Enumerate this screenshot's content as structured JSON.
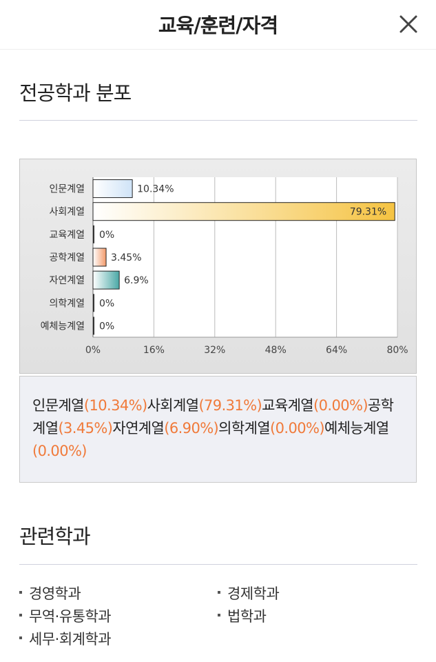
{
  "header": {
    "title": "교육/훈련/자격"
  },
  "major_section": {
    "title": "전공학과 분포"
  },
  "chart_data": {
    "type": "bar",
    "orientation": "horizontal",
    "categories": [
      "인문계열",
      "사회계열",
      "교육계열",
      "공학계열",
      "자연계열",
      "의학계열",
      "예체능계열"
    ],
    "values": [
      10.34,
      79.31,
      0,
      3.45,
      6.9,
      0,
      0
    ],
    "value_labels": [
      "10.34%",
      "79.31%",
      "0%",
      "3.45%",
      "6.9%",
      "0%",
      "0%"
    ],
    "xlim": [
      0,
      80
    ],
    "xticks": [
      0,
      16,
      32,
      48,
      64,
      80
    ],
    "xtick_labels": [
      "0%",
      "16%",
      "32%",
      "48%",
      "64%",
      "80%"
    ],
    "grid": true,
    "colors": [
      "#cfe3f7",
      "#f5c342",
      "#d9d9d9",
      "#f39a6a",
      "#4aa8a6",
      "#d9d9d9",
      "#d9d9d9"
    ]
  },
  "summary": {
    "items": [
      {
        "name": "인문계열",
        "pct": "(10.34%)"
      },
      {
        "name": "사회계열",
        "pct": "(79.31%)"
      },
      {
        "name": "교육계열",
        "pct": "(0.00%)"
      },
      {
        "name": "공학계열",
        "pct": "(3.45%)"
      },
      {
        "name": "자연계열",
        "pct": "(6.90%)"
      },
      {
        "name": "의학계열",
        "pct": "(0.00%)"
      },
      {
        "name": "예체능계열",
        "pct": "(0.00%)"
      }
    ]
  },
  "related_section": {
    "title": "관련학과",
    "items": [
      "경영학과",
      "경제학과",
      "무역·유통학과",
      "법학과",
      "세무·회계학과"
    ]
  },
  "icons": {
    "close": "close-icon"
  },
  "colors": {
    "accent_orange": "#f07a3a",
    "rule": "#cfd1dd"
  }
}
